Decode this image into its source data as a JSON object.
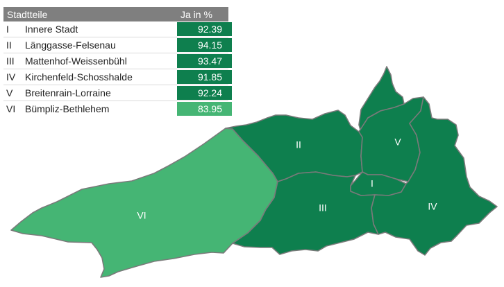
{
  "legend": {
    "header_name": "Stadtteile",
    "header_value": "Ja in %",
    "rows": [
      {
        "roman": "I",
        "name": "Innere Stadt",
        "value": "92.39",
        "color": "#0e7f4e"
      },
      {
        "roman": "II",
        "name": "Länggasse-Felsenau",
        "value": "94.15",
        "color": "#0e7f4e"
      },
      {
        "roman": "III",
        "name": "Mattenhof-Weissenbühl",
        "value": "93.47",
        "color": "#0e7f4e"
      },
      {
        "roman": "IV",
        "name": "Kirchenfeld-Schosshalde",
        "value": "91.85",
        "color": "#0e7f4e"
      },
      {
        "roman": "V",
        "name": "Breitenrain-Lorraine",
        "value": "92.24",
        "color": "#0e7f4e"
      },
      {
        "roman": "VI",
        "name": "Bümpliz-Bethlehem",
        "value": "83.95",
        "color": "#45b574"
      }
    ]
  },
  "map": {
    "district_labels": [
      "I",
      "II",
      "III",
      "IV",
      "V",
      "VI"
    ],
    "colors": {
      "dark_green": "#0e7f4e",
      "light_green": "#45b574",
      "border": "#7a7a7a"
    }
  }
}
